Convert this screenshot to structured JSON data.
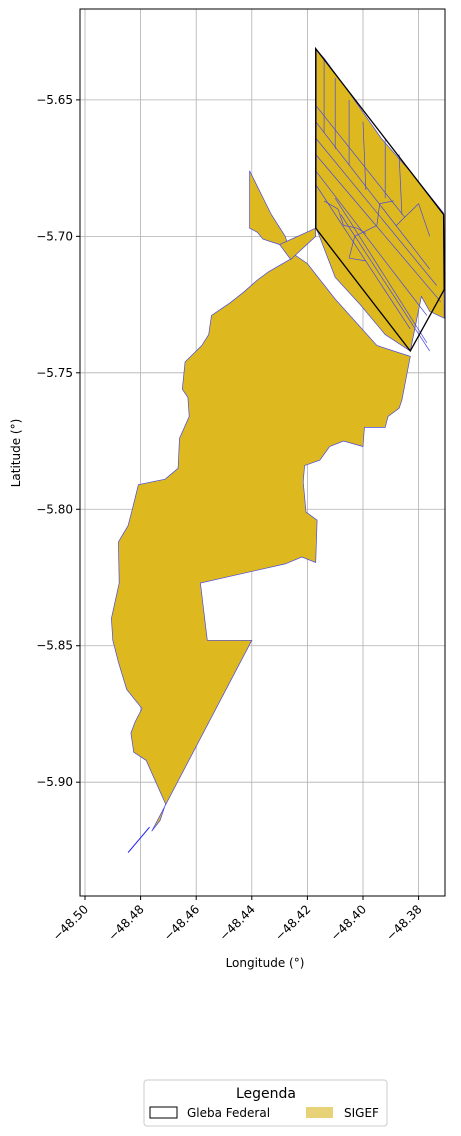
{
  "map": {
    "xlabel": "Longitude (°)",
    "ylabel": "Latitude (°)",
    "x_ticks": [
      {
        "value": -48.5,
        "label": "−48.50"
      },
      {
        "value": -48.48,
        "label": "−48.48"
      },
      {
        "value": -48.46,
        "label": "−48.46"
      },
      {
        "value": -48.44,
        "label": "−48.44"
      },
      {
        "value": -48.42,
        "label": "−48.42"
      },
      {
        "value": -48.4,
        "label": "−48.40"
      },
      {
        "value": -48.38,
        "label": "−48.38"
      }
    ],
    "y_ticks": [
      {
        "value": -5.65,
        "label": "−5.65"
      },
      {
        "value": -5.7,
        "label": "−5.70"
      },
      {
        "value": -5.75,
        "label": "−5.75"
      },
      {
        "value": -5.8,
        "label": "−5.80"
      },
      {
        "value": -5.85,
        "label": "−5.85"
      },
      {
        "value": -5.9,
        "label": "−5.90"
      }
    ],
    "xlim": [
      -48.5018,
      -48.3705
    ],
    "ylim": [
      -5.9417,
      -5.6167
    ],
    "grid": true,
    "colors": {
      "sigef_fill": "#ddb91f",
      "sigef_edge": "#4a4ae0",
      "gleba_edge": "#000000",
      "grid": "#b0b0b0"
    },
    "layers": {
      "sigef_main": [
        [
          -48.4408,
          -5.676
        ],
        [
          -48.433,
          -5.692
        ],
        [
          -48.428,
          -5.7
        ],
        [
          -48.4255,
          -5.708
        ],
        [
          -48.434,
          -5.713
        ],
        [
          -48.438,
          -5.716
        ],
        [
          -48.443,
          -5.7205
        ],
        [
          -48.448,
          -5.7245
        ],
        [
          -48.4545,
          -5.729
        ],
        [
          -48.4555,
          -5.736
        ],
        [
          -48.458,
          -5.74
        ],
        [
          -48.464,
          -5.746
        ],
        [
          -48.465,
          -5.756
        ],
        [
          -48.463,
          -5.759
        ],
        [
          -48.4625,
          -5.766
        ],
        [
          -48.466,
          -5.774
        ],
        [
          -48.4665,
          -5.785
        ],
        [
          -48.4712,
          -5.789
        ],
        [
          -48.4808,
          -5.791
        ],
        [
          -48.483,
          -5.8
        ],
        [
          -48.4845,
          -5.806
        ],
        [
          -48.488,
          -5.812
        ],
        [
          -48.4877,
          -5.827
        ],
        [
          -48.4905,
          -5.84
        ],
        [
          -48.49,
          -5.848
        ],
        [
          -48.4895,
          -5.85
        ],
        [
          -48.488,
          -5.856
        ],
        [
          -48.485,
          -5.866
        ],
        [
          -48.4795,
          -5.873
        ],
        [
          -48.482,
          -5.878
        ],
        [
          -48.4835,
          -5.882
        ],
        [
          -48.4825,
          -5.889
        ],
        [
          -48.478,
          -5.892
        ],
        [
          -48.4745,
          -5.9
        ],
        [
          -48.471,
          -5.908
        ],
        [
          -48.473,
          -5.914
        ],
        [
          -48.476,
          -5.918
        ],
        [
          -48.44,
          -5.848
        ],
        [
          -48.456,
          -5.848
        ],
        [
          -48.4585,
          -5.827
        ],
        [
          -48.428,
          -5.82
        ],
        [
          -48.422,
          -5.8175
        ],
        [
          -48.417,
          -5.8195
        ],
        [
          -48.4165,
          -5.804
        ],
        [
          -48.4205,
          -5.801
        ],
        [
          -48.4215,
          -5.79
        ],
        [
          -48.421,
          -5.784
        ],
        [
          -48.4155,
          -5.782
        ],
        [
          -48.412,
          -5.777
        ],
        [
          -48.407,
          -5.775
        ],
        [
          -48.4,
          -5.777
        ],
        [
          -48.3995,
          -5.77
        ],
        [
          -48.392,
          -5.77
        ],
        [
          -48.391,
          -5.766
        ],
        [
          -48.387,
          -5.763
        ],
        [
          -48.386,
          -5.76
        ],
        [
          -48.383,
          -5.744
        ],
        [
          -48.395,
          -5.74
        ],
        [
          -48.41,
          -5.723
        ],
        [
          -48.42,
          -5.71
        ],
        [
          -48.43,
          -5.703
        ],
        [
          -48.436,
          -5.701
        ],
        [
          -48.438,
          -5.6985
        ],
        [
          -48.4408,
          -5.697
        ]
      ],
      "sigef_north": [
        [
          -48.4168,
          -5.6315
        ],
        [
          -48.4138,
          -5.635
        ],
        [
          -48.4045,
          -5.648
        ],
        [
          -48.3935,
          -5.664
        ],
        [
          -48.3815,
          -5.678
        ],
        [
          -48.371,
          -5.6915
        ],
        [
          -48.3708,
          -5.73
        ],
        [
          -48.376,
          -5.7275
        ],
        [
          -48.379,
          -5.722
        ],
        [
          -48.383,
          -5.742
        ],
        [
          -48.392,
          -5.736
        ],
        [
          -48.401,
          -5.725
        ],
        [
          -48.41,
          -5.715
        ],
        [
          -48.4168,
          -5.697
        ]
      ],
      "sigef_strip": [
        [
          -48.417,
          -5.697
        ],
        [
          -48.43,
          -5.703
        ],
        [
          -48.426,
          -5.7085
        ],
        [
          -48.417,
          -5.7
        ]
      ],
      "gleba": [
        [
          -48.417,
          -5.6312
        ],
        [
          -48.371,
          -5.692
        ],
        [
          -48.3708,
          -5.7195
        ],
        [
          -48.383,
          -5.742
        ],
        [
          -48.417,
          -5.697
        ]
      ],
      "parcel_lines": [
        [
          [
            -48.417,
            -5.652
          ],
          [
            -48.385,
            -5.693
          ]
        ],
        [
          [
            -48.417,
            -5.658
          ],
          [
            -48.376,
            -5.712
          ]
        ],
        [
          [
            -48.417,
            -5.664
          ],
          [
            -48.3735,
            -5.718
          ]
        ],
        [
          [
            -48.417,
            -5.67
          ],
          [
            -48.372,
            -5.724
          ]
        ],
        [
          [
            -48.417,
            -5.676
          ],
          [
            -48.377,
            -5.729
          ]
        ],
        [
          [
            -48.417,
            -5.681
          ],
          [
            -48.383,
            -5.734
          ]
        ],
        [
          [
            -48.41,
            -5.686
          ],
          [
            -48.377,
            -5.739
          ]
        ],
        [
          [
            -48.408,
            -5.692
          ],
          [
            -48.376,
            -5.742
          ]
        ],
        [
          [
            -48.414,
            -5.635
          ],
          [
            -48.414,
            -5.662
          ]
        ],
        [
          [
            -48.41,
            -5.642
          ],
          [
            -48.41,
            -5.668
          ]
        ],
        [
          [
            -48.405,
            -5.65
          ],
          [
            -48.405,
            -5.674
          ]
        ],
        [
          [
            -48.4,
            -5.658
          ],
          [
            -48.399,
            -5.683
          ]
        ],
        [
          [
            -48.392,
            -5.664
          ],
          [
            -48.392,
            -5.686
          ]
        ],
        [
          [
            -48.387,
            -5.67
          ],
          [
            -48.386,
            -5.692
          ]
        ],
        [
          [
            -48.414,
            -5.687
          ],
          [
            -48.409,
            -5.69
          ]
        ],
        [
          [
            -48.409,
            -5.69
          ],
          [
            -48.407,
            -5.696
          ]
        ],
        [
          [
            -48.407,
            -5.696
          ],
          [
            -48.402,
            -5.697
          ]
        ],
        [
          [
            -48.402,
            -5.697
          ],
          [
            -48.399,
            -5.699
          ]
        ],
        [
          [
            -48.403,
            -5.7
          ],
          [
            -48.395,
            -5.696
          ]
        ],
        [
          [
            -48.395,
            -5.696
          ],
          [
            -48.394,
            -5.688
          ]
        ],
        [
          [
            -48.394,
            -5.688
          ],
          [
            -48.389,
            -5.687
          ]
        ],
        [
          [
            -48.403,
            -5.7
          ],
          [
            -48.405,
            -5.708
          ]
        ],
        [
          [
            -48.405,
            -5.708
          ],
          [
            -48.399,
            -5.709
          ]
        ],
        [
          [
            -48.388,
            -5.696
          ],
          [
            -48.38,
            -5.688
          ]
        ],
        [
          [
            -48.38,
            -5.688
          ],
          [
            -48.376,
            -5.7
          ]
        ]
      ],
      "sigef_line": [
        [
          -48.4845,
          -5.9258
        ],
        [
          -48.4768,
          -5.9165
        ]
      ]
    }
  },
  "legend": {
    "title": "Legenda",
    "items": [
      {
        "label": "Gleba Federal",
        "style": "outline"
      },
      {
        "label": "SIGEF",
        "style": "fill"
      }
    ]
  }
}
